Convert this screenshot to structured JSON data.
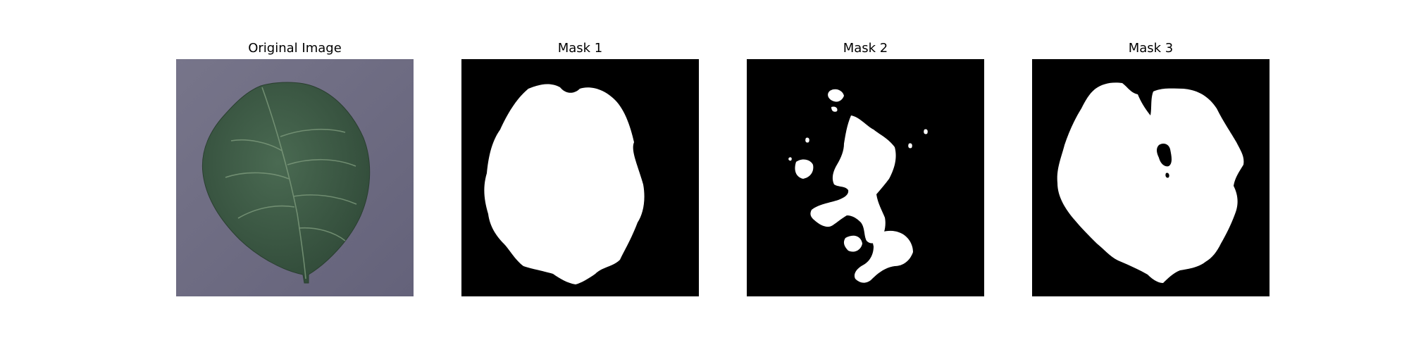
{
  "figure": {
    "panels": [
      {
        "title": "Original Image",
        "kind": "photo",
        "content": "green-leaf-on-gray-surface"
      },
      {
        "title": "Mask 1",
        "kind": "mask",
        "content": "binary-mask-whole-leaf"
      },
      {
        "title": "Mask 2",
        "kind": "mask",
        "content": "binary-mask-fragmented-regions"
      },
      {
        "title": "Mask 3",
        "kind": "mask",
        "content": "binary-mask-leaf-with-notch-and-hole"
      }
    ]
  },
  "colors": {
    "leaf": "#3f5d46",
    "leaf_dark": "#2f4a37",
    "vein": "#7d9a7c",
    "background_surface": "#6f6d80",
    "mask_background": "#000000",
    "mask_foreground": "#ffffff"
  }
}
